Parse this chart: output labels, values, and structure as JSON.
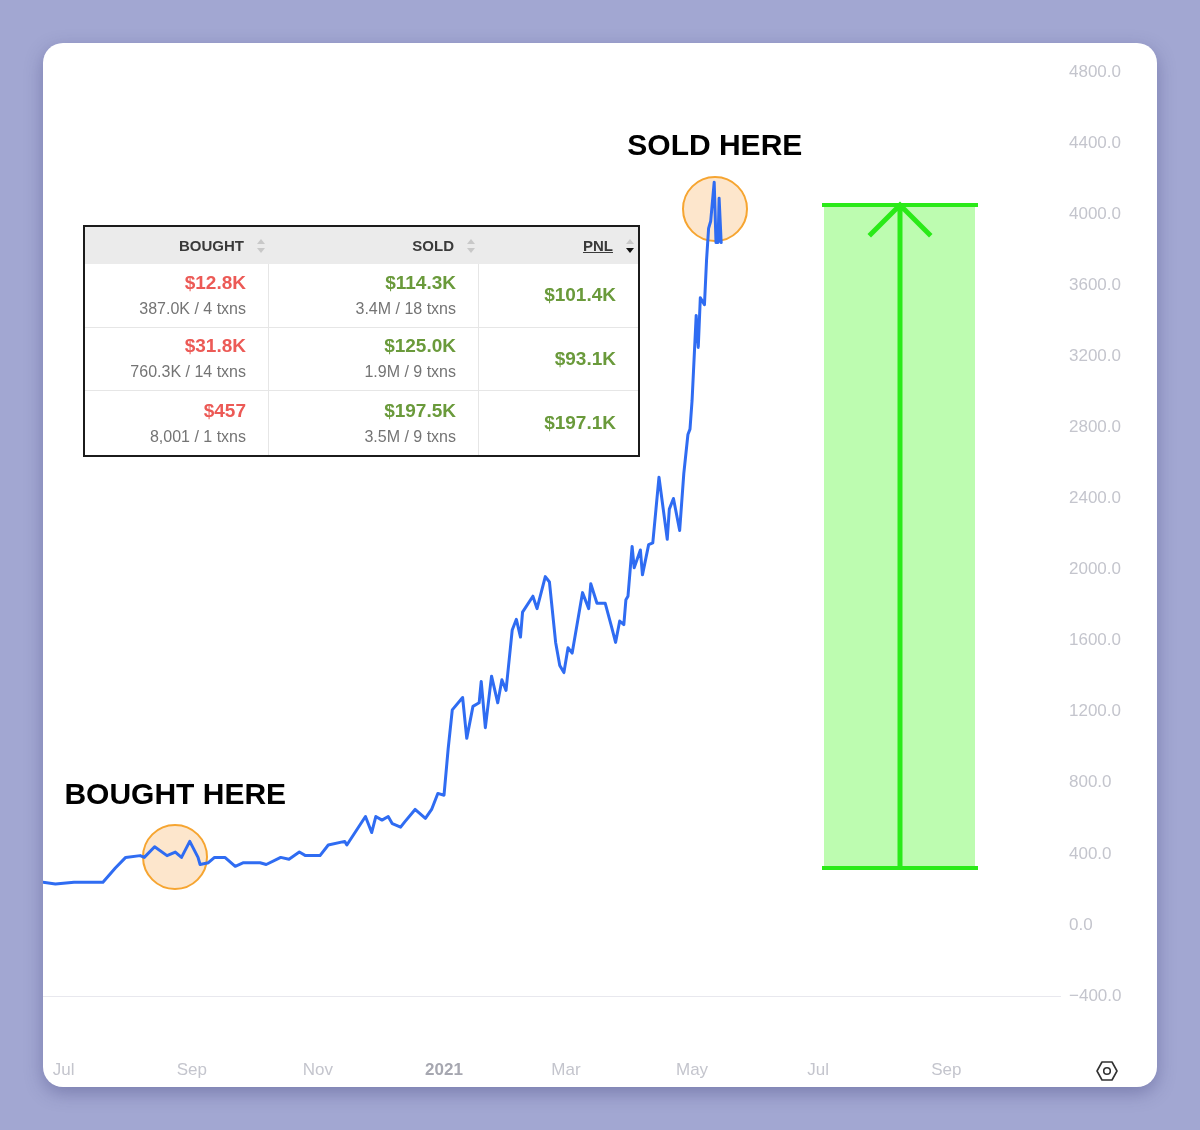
{
  "chart_data": [
    {
      "type": "line",
      "color": "#2f6cf2",
      "marker": "none",
      "x": [
        "2020-06-21",
        "2020-06-27",
        "2020-07-06",
        "2020-07-15",
        "2020-07-20",
        "2020-07-26",
        "2020-07-31",
        "2020-08-07",
        "2020-08-09",
        "2020-08-14",
        "2020-08-20",
        "2020-08-24",
        "2020-08-27",
        "2020-08-31",
        "2020-09-04",
        "2020-09-05",
        "2020-09-09",
        "2020-09-12",
        "2020-09-17",
        "2020-09-22",
        "2020-09-26",
        "2020-10-04",
        "2020-10-07",
        "2020-10-14",
        "2020-10-18",
        "2020-10-23",
        "2020-10-26",
        "2020-11-02",
        "2020-11-06",
        "2020-11-14",
        "2020-11-15",
        "2020-11-24",
        "2020-11-27",
        "2020-11-29",
        "2020-12-02",
        "2020-12-05",
        "2020-12-07",
        "2020-12-11",
        "2020-12-13",
        "2020-12-18",
        "2020-12-23",
        "2020-12-26",
        "2020-12-29",
        "2021-01-01",
        "2021-01-03",
        "2021-01-05",
        "2021-01-10",
        "2021-01-12",
        "2021-01-15",
        "2021-01-18",
        "2021-01-19",
        "2021-01-21",
        "2021-01-24",
        "2021-01-27",
        "2021-01-29",
        "2021-01-31",
        "2021-02-03",
        "2021-02-05",
        "2021-02-07",
        "2021-02-08",
        "2021-02-13",
        "2021-02-15",
        "2021-02-19",
        "2021-02-21",
        "2021-02-24",
        "2021-02-26",
        "2021-02-28",
        "2021-03-02",
        "2021-03-04",
        "2021-03-09",
        "2021-03-12",
        "2021-03-13",
        "2021-03-16",
        "2021-03-20",
        "2021-03-23",
        "2021-03-25",
        "2021-03-27",
        "2021-03-29",
        "2021-03-30",
        "2021-03-31",
        "2021-04-02",
        "2021-04-03",
        "2021-04-06",
        "2021-04-07",
        "2021-04-10",
        "2021-04-12",
        "2021-04-15",
        "2021-04-19",
        "2021-04-20",
        "2021-04-22",
        "2021-04-25",
        "2021-04-27",
        "2021-04-29",
        "2021-04-30",
        "2021-05-01",
        "2021-05-03",
        "2021-05-04",
        "2021-05-05",
        "2021-05-07",
        "2021-05-08",
        "2021-05-09",
        "2021-05-10",
        "2021-05-11T17:00",
        "2021-05-12T14:00",
        "2021-05-13T14:00",
        "2021-05-14T02:00",
        "2021-05-15T02:00"
      ],
      "values": [
        240,
        230,
        240,
        240,
        240,
        320,
        380,
        390,
        380,
        440,
        390,
        410,
        380,
        470,
        380,
        340,
        350,
        380,
        380,
        330,
        350,
        350,
        340,
        380,
        370,
        410,
        390,
        390,
        450,
        470,
        450,
        610,
        520,
        610,
        590,
        610,
        570,
        550,
        580,
        650,
        600,
        650,
        740,
        730,
        990,
        1210,
        1280,
        1050,
        1230,
        1250,
        1370,
        1110,
        1400,
        1250,
        1380,
        1320,
        1660,
        1720,
        1620,
        1760,
        1850,
        1780,
        1960,
        1930,
        1590,
        1460,
        1420,
        1560,
        1530,
        1870,
        1780,
        1920,
        1810,
        1810,
        1680,
        1590,
        1710,
        1690,
        1830,
        1850,
        2130,
        2010,
        2110,
        1970,
        2140,
        2150,
        2520,
        2170,
        2340,
        2400,
        2220,
        2540,
        2760,
        2790,
        2950,
        3430,
        3250,
        3530,
        3490,
        3740,
        3920,
        3960,
        4180,
        3840,
        3840,
        4090,
        3840
      ],
      "xlim": [
        "2020-06-21",
        "2021-10-26"
      ],
      "xticks": [
        {
          "value": "2020-07-01",
          "label": "Jul"
        },
        {
          "value": "2020-09-01",
          "label": "Sep"
        },
        {
          "value": "2020-11-01",
          "label": "Nov"
        },
        {
          "value": "2021-01-01",
          "label": "2021"
        },
        {
          "value": "2021-03-01",
          "label": "Mar"
        },
        {
          "value": "2021-05-01",
          "label": "May"
        },
        {
          "value": "2021-07-01",
          "label": "Jul"
        },
        {
          "value": "2021-09-01",
          "label": "Sep"
        }
      ],
      "ylim": [
        -400,
        4800
      ],
      "yticks": [
        {
          "value": -400,
          "label": "−400.0"
        },
        {
          "value": 0,
          "label": "0.0"
        },
        {
          "value": 400,
          "label": "400.0"
        },
        {
          "value": 800,
          "label": "800.0"
        },
        {
          "value": 1200,
          "label": "1200.0"
        },
        {
          "value": 1600,
          "label": "1600.0"
        },
        {
          "value": 2000,
          "label": "2000.0"
        },
        {
          "value": 2400,
          "label": "2400.0"
        },
        {
          "value": 2800,
          "label": "2800.0"
        },
        {
          "value": 3200,
          "label": "3200.0"
        },
        {
          "value": 3600,
          "label": "3600.0"
        },
        {
          "value": 4000,
          "label": "4000.0"
        },
        {
          "value": 4400,
          "label": "4400.0"
        },
        {
          "value": 4800,
          "label": "4800.0"
        }
      ],
      "annotations": [
        {
          "text": "BOUGHT HERE",
          "x": "2020-08-24",
          "y": 380
        },
        {
          "text": "SOLD HERE",
          "x": "2021-05-12",
          "y": 4030
        }
      ]
    },
    {
      "type": "other",
      "categories": [
        "BOUGHT",
        "SOLD",
        "PNL"
      ],
      "annotations": [
        "$12.8K\n387.0K / 4 txns",
        "$114.3K\n3.4M / 18 txns",
        "$101.4K",
        "$31.8K\n760.3K / 14 txns",
        "$125.0K\n1.9M / 9 txns",
        "$93.1K",
        "$457\n8,001 / 1 txns",
        "$197.5K\n3.5M / 9 txns",
        "$197.1K"
      ]
    }
  ]
}
